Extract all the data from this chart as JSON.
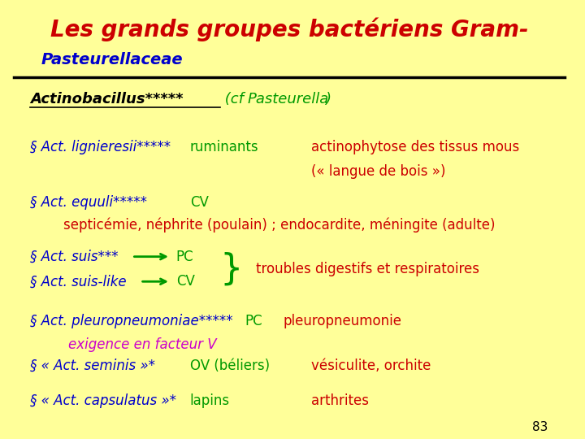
{
  "bg_color": "#FFFF99",
  "title": "Les grands groupes bactériens Gram-",
  "title_color": "#CC0000",
  "subtitle": "Pasteurellaceae",
  "subtitle_color": "#0000CC",
  "line_color": "#000000",
  "page_num": "83",
  "page_color": "#000000"
}
